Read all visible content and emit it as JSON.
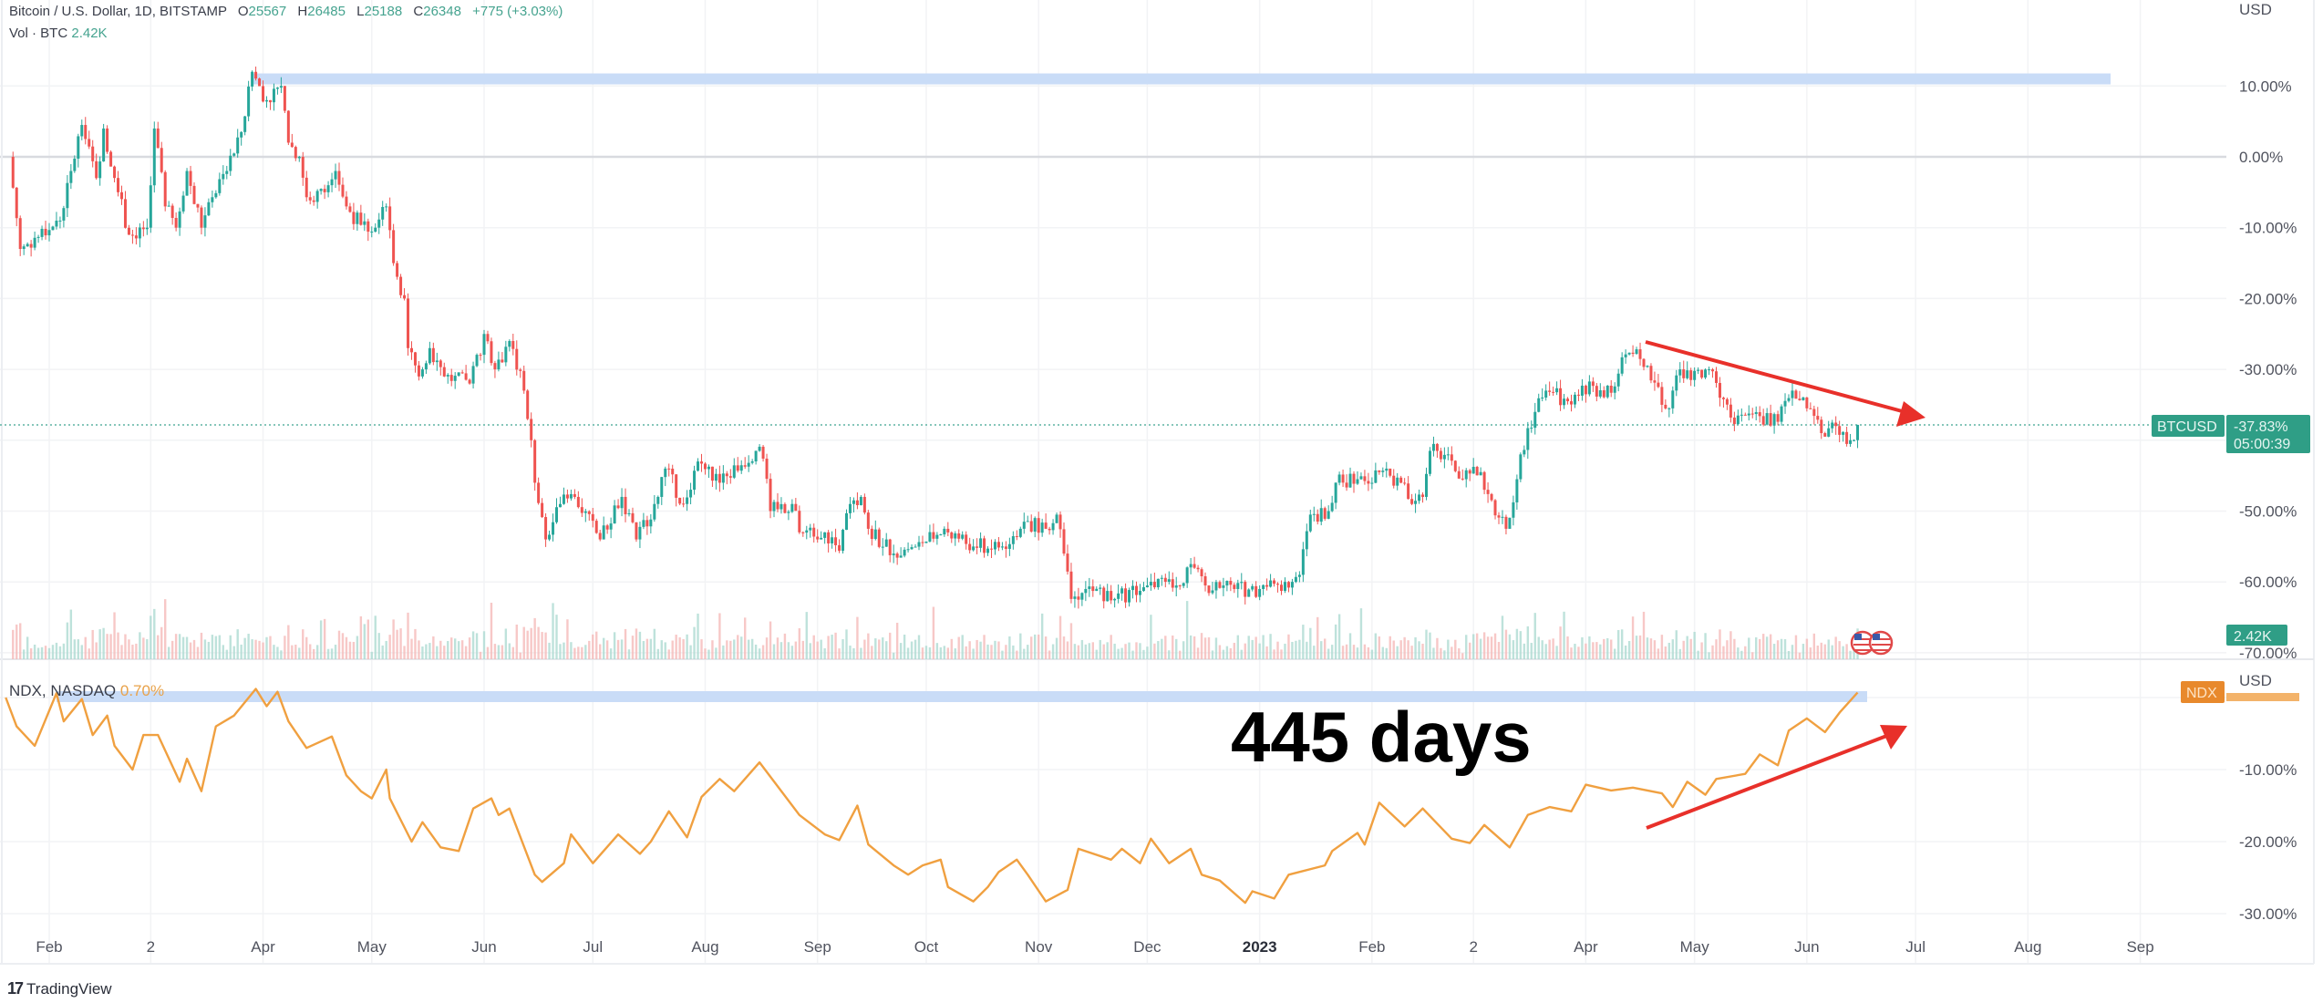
{
  "header": {
    "symbol_title": "Bitcoin / U.S. Dollar, 1D, BITSTAMP",
    "open_label": "O",
    "open": "25567",
    "high_label": "H",
    "high": "26485",
    "low_label": "L",
    "low": "25188",
    "close_label": "C",
    "close": "26348",
    "change": "+775 (+3.03%)",
    "volume_label": "Vol · BTC",
    "volume_value": "2.42K"
  },
  "lower_pane": {
    "symbol_title": "NDX, NASDAQ",
    "change": "0.70%"
  },
  "price_axis": {
    "currency": "USD",
    "ticks": [
      {
        "label": "10.00%",
        "value": 10
      },
      {
        "label": "0.00%",
        "value": 0
      },
      {
        "label": "-10.00%",
        "value": -10
      },
      {
        "label": "-20.00%",
        "value": -20
      },
      {
        "label": "-30.00%",
        "value": -30
      },
      {
        "label": "-50.00%",
        "value": -50
      },
      {
        "label": "-60.00%",
        "value": -60
      },
      {
        "label": "-70.00%",
        "value": -70
      }
    ],
    "last_price_symbol": "BTCUSD",
    "last_price_value": "-37.83%",
    "bar_countdown": "05:00:39",
    "volume_tag": "2.42K"
  },
  "lower_axis": {
    "currency": "USD",
    "symbol_tag": "NDX",
    "ticks": [
      {
        "label": "-10.00%",
        "value": -10
      },
      {
        "label": "-20.00%",
        "value": -20
      },
      {
        "label": "-30.00%",
        "value": -30
      }
    ]
  },
  "time_axis": {
    "ticks": [
      {
        "label": "Feb",
        "date": "2022-02-01"
      },
      {
        "label": "2",
        "date": "2022-03-01"
      },
      {
        "label": "Apr",
        "date": "2022-04-01"
      },
      {
        "label": "May",
        "date": "2022-05-01"
      },
      {
        "label": "Jun",
        "date": "2022-06-01"
      },
      {
        "label": "Jul",
        "date": "2022-07-01"
      },
      {
        "label": "Aug",
        "date": "2022-08-01"
      },
      {
        "label": "Sep",
        "date": "2022-09-01"
      },
      {
        "label": "Oct",
        "date": "2022-10-01"
      },
      {
        "label": "Nov",
        "date": "2022-11-01"
      },
      {
        "label": "Dec",
        "date": "2022-12-01"
      },
      {
        "label": "2023",
        "date": "2023-01-01",
        "bold": true
      },
      {
        "label": "Feb",
        "date": "2023-02-01"
      },
      {
        "label": "2",
        "date": "2023-03-01"
      },
      {
        "label": "Apr",
        "date": "2023-04-01"
      },
      {
        "label": "May",
        "date": "2023-05-01"
      },
      {
        "label": "Jun",
        "date": "2023-06-01"
      },
      {
        "label": "Jul",
        "date": "2023-07-01"
      },
      {
        "label": "Aug",
        "date": "2023-08-01"
      },
      {
        "label": "Sep",
        "date": "2023-09-01"
      }
    ]
  },
  "annotation": {
    "text": "445 days"
  },
  "branding": {
    "logo_text": "TradingView"
  },
  "colors": {
    "up": "#26a69a",
    "down": "#ef5350",
    "ndx_line": "#f0a040",
    "level_band": "#c9dcf7",
    "arrow": "#e8302a",
    "tag_green": "#2f9e86",
    "tag_orange": "#e8892c"
  },
  "icons": [
    "us-flag-icon",
    "tradingview-logo-icon"
  ],
  "chart_data": [
    {
      "type": "candlestick",
      "title": "Bitcoin / U.S. Dollar, 1D, BITSTAMP",
      "ylabel": "USD",
      "y_unit": "%",
      "ylim": [
        -70,
        12
      ],
      "grid": true,
      "last_value": -37.83,
      "level_line": 11,
      "points": [
        [
          "2022-01-21",
          0
        ],
        [
          "2022-01-24",
          -13
        ],
        [
          "2022-02-04",
          -9
        ],
        [
          "2022-02-07",
          -2
        ],
        [
          "2022-02-10",
          4.5
        ],
        [
          "2022-02-14",
          -3
        ],
        [
          "2022-02-16",
          4
        ],
        [
          "2022-02-20",
          -5
        ],
        [
          "2022-02-23",
          -11
        ],
        [
          "2022-02-28",
          -10
        ],
        [
          "2022-03-02",
          4
        ],
        [
          "2022-03-05",
          -7
        ],
        [
          "2022-03-08",
          -10
        ],
        [
          "2022-03-11",
          -2
        ],
        [
          "2022-03-15",
          -10
        ],
        [
          "2022-03-18",
          -5.7
        ],
        [
          "2022-03-22",
          -2
        ],
        [
          "2022-03-26",
          3.5
        ],
        [
          "2022-03-29",
          12
        ],
        [
          "2022-04-02",
          8
        ],
        [
          "2022-04-06",
          10
        ],
        [
          "2022-04-08",
          2
        ],
        [
          "2022-04-11",
          0
        ],
        [
          "2022-04-13",
          -5.7
        ],
        [
          "2022-04-18",
          -5
        ],
        [
          "2022-04-21",
          -2
        ],
        [
          "2022-04-24",
          -7
        ],
        [
          "2022-04-28",
          -9.6
        ],
        [
          "2022-05-02",
          -10
        ],
        [
          "2022-05-05",
          -7
        ],
        [
          "2022-05-07",
          -15
        ],
        [
          "2022-05-10",
          -20
        ],
        [
          "2022-05-11",
          -27
        ],
        [
          "2022-05-14",
          -31
        ],
        [
          "2022-05-17",
          -27
        ],
        [
          "2022-05-21",
          -31
        ],
        [
          "2022-05-28",
          -32
        ],
        [
          "2022-06-01",
          -25
        ],
        [
          "2022-06-04",
          -30
        ],
        [
          "2022-06-08",
          -26
        ],
        [
          "2022-06-12",
          -33
        ],
        [
          "2022-06-14",
          -40
        ],
        [
          "2022-06-15",
          -46
        ],
        [
          "2022-06-18",
          -54
        ],
        [
          "2022-06-22",
          -49
        ],
        [
          "2022-06-26",
          -48
        ],
        [
          "2022-07-03",
          -54
        ],
        [
          "2022-07-09",
          -48
        ],
        [
          "2022-07-13",
          -54
        ],
        [
          "2022-07-18",
          -49
        ],
        [
          "2022-07-21",
          -44
        ],
        [
          "2022-07-26",
          -49
        ],
        [
          "2022-07-30",
          -43
        ],
        [
          "2022-08-05",
          -46
        ],
        [
          "2022-08-15",
          -41.5
        ],
        [
          "2022-08-17",
          -42.6
        ],
        [
          "2022-08-19",
          -50
        ],
        [
          "2022-08-25",
          -49
        ],
        [
          "2022-08-27",
          -53
        ],
        [
          "2022-09-03",
          -53
        ],
        [
          "2022-09-07",
          -55.6
        ],
        [
          "2022-09-10",
          -49
        ],
        [
          "2022-09-13",
          -48
        ],
        [
          "2022-09-15",
          -52.5
        ],
        [
          "2022-09-22",
          -56
        ],
        [
          "2022-09-30",
          -54.5
        ],
        [
          "2022-10-06",
          -52.5
        ],
        [
          "2022-10-14",
          -55
        ],
        [
          "2022-10-22",
          -55
        ],
        [
          "2022-10-28",
          -51.5
        ],
        [
          "2022-11-03",
          -52.5
        ],
        [
          "2022-11-06",
          -50.5
        ],
        [
          "2022-11-08",
          -56
        ],
        [
          "2022-11-10",
          -62.4
        ],
        [
          "2022-11-14",
          -61
        ],
        [
          "2022-11-22",
          -62.4
        ],
        [
          "2022-12-01",
          -60.5
        ],
        [
          "2022-12-09",
          -60.5
        ],
        [
          "2022-12-14",
          -58
        ],
        [
          "2022-12-17",
          -60.5
        ],
        [
          "2022-12-25",
          -61
        ],
        [
          "2023-01-01",
          -61
        ],
        [
          "2023-01-08",
          -60
        ],
        [
          "2023-01-12",
          -59
        ],
        [
          "2023-01-15",
          -50.5
        ],
        [
          "2023-01-20",
          -50
        ],
        [
          "2023-01-22",
          -46
        ],
        [
          "2023-01-28",
          -45.5
        ],
        [
          "2023-02-03",
          -44.5
        ],
        [
          "2023-02-09",
          -46
        ],
        [
          "2023-02-12",
          -49
        ],
        [
          "2023-02-15",
          -48
        ],
        [
          "2023-02-17",
          -41.5
        ],
        [
          "2023-02-22",
          -42
        ],
        [
          "2023-02-26",
          -45.5
        ],
        [
          "2023-03-03",
          -44.5
        ],
        [
          "2023-03-05",
          -47.6
        ],
        [
          "2023-03-10",
          -52.5
        ],
        [
          "2023-03-13",
          -45.5
        ],
        [
          "2023-03-14",
          -42
        ],
        [
          "2023-03-18",
          -36
        ],
        [
          "2023-03-21",
          -33
        ],
        [
          "2023-03-27",
          -34.5
        ],
        [
          "2023-03-31",
          -32.3
        ],
        [
          "2023-04-08",
          -33.3
        ],
        [
          "2023-04-11",
          -28.3
        ],
        [
          "2023-04-14",
          -27.8
        ],
        [
          "2023-04-18",
          -29.5
        ],
        [
          "2023-04-22",
          -35
        ],
        [
          "2023-04-24",
          -35.5
        ],
        [
          "2023-04-27",
          -30
        ],
        [
          "2023-04-30",
          -31.5
        ],
        [
          "2023-05-05",
          -30
        ],
        [
          "2023-05-08",
          -34
        ],
        [
          "2023-05-11",
          -36.8
        ],
        [
          "2023-05-17",
          -36.3
        ],
        [
          "2023-05-24",
          -37.4
        ],
        [
          "2023-05-28",
          -33
        ],
        [
          "2023-06-01",
          -35.5
        ],
        [
          "2023-06-05",
          -39
        ],
        [
          "2023-06-09",
          -38
        ],
        [
          "2023-06-13",
          -40
        ],
        [
          "2023-06-15",
          -37.83
        ]
      ]
    },
    {
      "type": "line",
      "title": "NDX, NASDAQ",
      "ylabel": "USD",
      "y_unit": "%",
      "ylim": [
        -32,
        2
      ],
      "grid": true,
      "last_value": 0.7,
      "level_line": 0,
      "points": [
        [
          "2022-01-20",
          0
        ],
        [
          "2022-01-23",
          -4
        ],
        [
          "2022-01-28",
          -6.7
        ],
        [
          "2022-02-03",
          0.6
        ],
        [
          "2022-02-05",
          -3.3
        ],
        [
          "2022-02-10",
          -0.2
        ],
        [
          "2022-02-13",
          -5.2
        ],
        [
          "2022-02-17",
          -2.5
        ],
        [
          "2022-02-19",
          -6.7
        ],
        [
          "2022-02-24",
          -10
        ],
        [
          "2022-02-27",
          -5.2
        ],
        [
          "2022-03-03",
          -5.2
        ],
        [
          "2022-03-09",
          -11.7
        ],
        [
          "2022-03-11",
          -8.5
        ],
        [
          "2022-03-15",
          -13
        ],
        [
          "2022-03-19",
          -4
        ],
        [
          "2022-03-24",
          -2.5
        ],
        [
          "2022-03-30",
          1.2
        ],
        [
          "2022-04-02",
          -1.2
        ],
        [
          "2022-04-05",
          0.8
        ],
        [
          "2022-04-08",
          -3.3
        ],
        [
          "2022-04-13",
          -7
        ],
        [
          "2022-04-20",
          -5.4
        ],
        [
          "2022-04-24",
          -10.8
        ],
        [
          "2022-04-28",
          -13
        ],
        [
          "2022-05-01",
          -14
        ],
        [
          "2022-05-05",
          -10
        ],
        [
          "2022-05-06",
          -14
        ],
        [
          "2022-05-12",
          -20
        ],
        [
          "2022-05-15",
          -17.3
        ],
        [
          "2022-05-20",
          -20.8
        ],
        [
          "2022-05-25",
          -21.3
        ],
        [
          "2022-05-29",
          -15.4
        ],
        [
          "2022-06-03",
          -14
        ],
        [
          "2022-06-05",
          -16.3
        ],
        [
          "2022-06-08",
          -15.4
        ],
        [
          "2022-06-15",
          -24.6
        ],
        [
          "2022-06-17",
          -25.6
        ],
        [
          "2022-06-23",
          -23
        ],
        [
          "2022-06-25",
          -19
        ],
        [
          "2022-07-01",
          -23
        ],
        [
          "2022-07-08",
          -19
        ],
        [
          "2022-07-14",
          -21.7
        ],
        [
          "2022-07-17",
          -20
        ],
        [
          "2022-07-22",
          -15.8
        ],
        [
          "2022-07-27",
          -19.4
        ],
        [
          "2022-07-31",
          -13.8
        ],
        [
          "2022-08-05",
          -11.3
        ],
        [
          "2022-08-09",
          -13
        ],
        [
          "2022-08-16",
          -9
        ],
        [
          "2022-08-27",
          -16.3
        ],
        [
          "2022-09-03",
          -19
        ],
        [
          "2022-09-07",
          -19.8
        ],
        [
          "2022-09-12",
          -15
        ],
        [
          "2022-09-15",
          -20.4
        ],
        [
          "2022-09-22",
          -23.3
        ],
        [
          "2022-09-26",
          -24.6
        ],
        [
          "2022-09-30",
          -23.3
        ],
        [
          "2022-10-05",
          -22.5
        ],
        [
          "2022-10-07",
          -26.3
        ],
        [
          "2022-10-14",
          -28.3
        ],
        [
          "2022-10-18",
          -26.3
        ],
        [
          "2022-10-21",
          -24.2
        ],
        [
          "2022-10-26",
          -22.5
        ],
        [
          "2022-10-29",
          -24.6
        ],
        [
          "2022-11-03",
          -28.3
        ],
        [
          "2022-11-09",
          -26.7
        ],
        [
          "2022-11-12",
          -21
        ],
        [
          "2022-11-21",
          -22.5
        ],
        [
          "2022-11-24",
          -21
        ],
        [
          "2022-11-29",
          -23
        ],
        [
          "2022-12-02",
          -19.6
        ],
        [
          "2022-12-07",
          -23
        ],
        [
          "2022-12-13",
          -21
        ],
        [
          "2022-12-16",
          -24.6
        ],
        [
          "2022-12-21",
          -25.4
        ],
        [
          "2022-12-28",
          -28.5
        ],
        [
          "2022-12-30",
          -26.9
        ],
        [
          "2023-01-05",
          -27.9
        ],
        [
          "2023-01-09",
          -24.6
        ],
        [
          "2023-01-19",
          -23.3
        ],
        [
          "2023-01-21",
          -21.3
        ],
        [
          "2023-01-28",
          -18.8
        ],
        [
          "2023-01-30",
          -20.4
        ],
        [
          "2023-02-03",
          -14.6
        ],
        [
          "2023-02-10",
          -17.9
        ],
        [
          "2023-02-15",
          -15.4
        ],
        [
          "2023-02-23",
          -19.6
        ],
        [
          "2023-02-28",
          -20.2
        ],
        [
          "2023-03-04",
          -17.7
        ],
        [
          "2023-03-11",
          -20.8
        ],
        [
          "2023-03-16",
          -16.3
        ],
        [
          "2023-03-22",
          -15.2
        ],
        [
          "2023-03-28",
          -15.8
        ],
        [
          "2023-04-01",
          -12.1
        ],
        [
          "2023-04-08",
          -12.9
        ],
        [
          "2023-04-14",
          -12.5
        ],
        [
          "2023-04-22",
          -13.3
        ],
        [
          "2023-04-25",
          -15.2
        ],
        [
          "2023-04-29",
          -11.7
        ],
        [
          "2023-05-04",
          -13.5
        ],
        [
          "2023-05-07",
          -11.3
        ],
        [
          "2023-05-15",
          -10.6
        ],
        [
          "2023-05-19",
          -7.9
        ],
        [
          "2023-05-24",
          -9.4
        ],
        [
          "2023-05-27",
          -4.6
        ],
        [
          "2023-06-01",
          -2.9
        ],
        [
          "2023-06-06",
          -4.8
        ],
        [
          "2023-06-10",
          -2.1
        ],
        [
          "2023-06-15",
          0.7
        ]
      ]
    }
  ]
}
